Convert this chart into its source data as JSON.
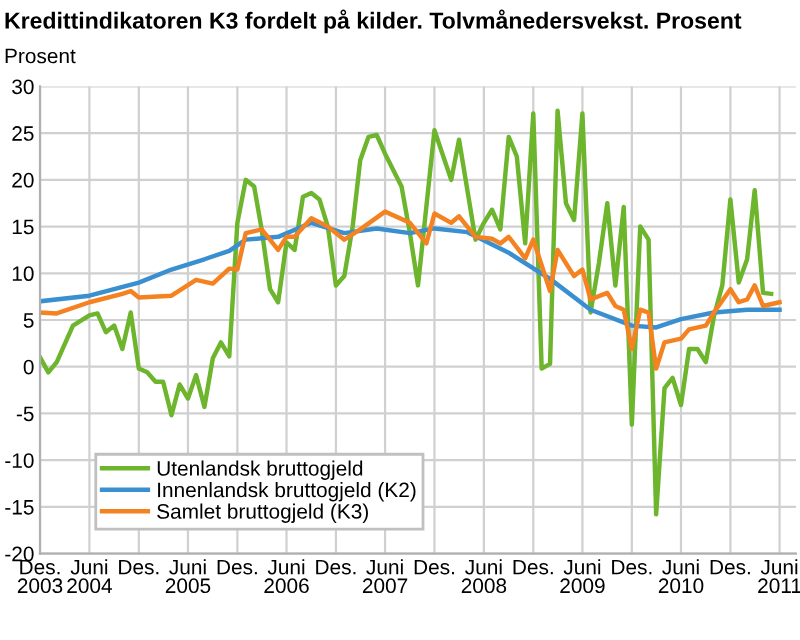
{
  "chart_data": {
    "type": "line",
    "title": "Kredittindikatoren K3 fordelt på kilder. Tolvmånedersvekst. Prosent",
    "ylabel": "Prosent",
    "xlim": [
      "2003-12",
      "2011-08"
    ],
    "ylim": [
      -20,
      30
    ],
    "yticks": [
      -20,
      -15,
      -10,
      -5,
      0,
      5,
      10,
      15,
      20,
      25,
      30
    ],
    "xticks": [
      {
        "value": "2003-12",
        "label": "Des.\n2003"
      },
      {
        "value": "2004-06",
        "label": "Juni\n2004"
      },
      {
        "value": "2004-12",
        "label": "Des."
      },
      {
        "value": "2005-06",
        "label": "Juni\n2005"
      },
      {
        "value": "2005-12",
        "label": "Des."
      },
      {
        "value": "2006-06",
        "label": "Juni\n2006"
      },
      {
        "value": "2006-12",
        "label": "Des."
      },
      {
        "value": "2007-06",
        "label": "Juni\n2007"
      },
      {
        "value": "2007-12",
        "label": "Des."
      },
      {
        "value": "2008-06",
        "label": "Juni\n2008"
      },
      {
        "value": "2008-12",
        "label": "Des."
      },
      {
        "value": "2009-06",
        "label": "Juni\n2009"
      },
      {
        "value": "2009-12",
        "label": "Des."
      },
      {
        "value": "2010-06",
        "label": "Juni\n2010"
      },
      {
        "value": "2010-12",
        "label": "Des."
      },
      {
        "value": "2011-06",
        "label": "Juni\n2011"
      }
    ],
    "grid": true,
    "legend": "bottom left",
    "marker": "none",
    "line_style": "solid",
    "series": [
      {
        "name": "Utenlandsk bruttogjeld",
        "color": "#6cb52d",
        "x": [
          "2003-12",
          "2004-01",
          "2004-02",
          "2004-04",
          "2004-06",
          "2004-07",
          "2004-08",
          "2004-09",
          "2004-10",
          "2004-11",
          "2004-12",
          "2005-01",
          "2005-02",
          "2005-03",
          "2005-04",
          "2005-05",
          "2005-06",
          "2005-07",
          "2005-08",
          "2005-09",
          "2005-10",
          "2005-11",
          "2005-12",
          "2006-01",
          "2006-02",
          "2006-03",
          "2006-04",
          "2006-05",
          "2006-06",
          "2006-07",
          "2006-08",
          "2006-09",
          "2006-10",
          "2006-11",
          "2006-12",
          "2007-01",
          "2007-02",
          "2007-03",
          "2007-04",
          "2007-05",
          "2007-06",
          "2007-08",
          "2007-09",
          "2007-10",
          "2007-12",
          "2008-02",
          "2008-03",
          "2008-05",
          "2008-06",
          "2008-07",
          "2008-08",
          "2008-09",
          "2008-10",
          "2008-11",
          "2008-12",
          "2009-01",
          "2009-02",
          "2009-03",
          "2009-04",
          "2009-05",
          "2009-06",
          "2009-07",
          "2009-08",
          "2009-09",
          "2009-10",
          "2009-11",
          "2009-12",
          "2010-01",
          "2010-02",
          "2010-03",
          "2010-04",
          "2010-05",
          "2010-06",
          "2010-07",
          "2010-08",
          "2010-09",
          "2010-10",
          "2010-11",
          "2010-12",
          "2011-01",
          "2011-02",
          "2011-03",
          "2011-04",
          "2011-05"
        ],
        "values": [
          1,
          -0.6,
          0.5,
          4.4,
          5.5,
          5.7,
          3.7,
          4.4,
          1.9,
          5.8,
          -0.2,
          -0.6,
          -1.6,
          -1.6,
          -5.2,
          -1.9,
          -3.4,
          -0.9,
          -4.3,
          0.9,
          2.6,
          1.1,
          15.4,
          20,
          19.3,
          14.7,
          8.3,
          6.9,
          13.3,
          12.5,
          18.2,
          18.6,
          17.9,
          15,
          8.7,
          9.7,
          15,
          22.1,
          24.6,
          24.8,
          22.8,
          19.3,
          14.3,
          8.7,
          25.3,
          20,
          24.3,
          13.6,
          15.4,
          16.8,
          14.7,
          24.6,
          22.5,
          13.2,
          27.1,
          -0.2,
          0.3,
          27.4,
          17.5,
          15.7,
          27.1,
          5.8,
          11.1,
          17.5,
          8.7,
          17.1,
          -6.2,
          15,
          13.6,
          -15.8,
          -2.3,
          -1.2,
          -4.1,
          1.9,
          1.9,
          0.5,
          5.4,
          8.7,
          17.9,
          9,
          11.5,
          18.9,
          7.9,
          7.8
        ]
      },
      {
        "name": "Innenlandsk bruttogjeld (K2)",
        "color": "#3a8fd0",
        "x": [
          "2003-12",
          "2004-06",
          "2004-12",
          "2005-04",
          "2005-08",
          "2005-11",
          "2006-01",
          "2006-05",
          "2006-09",
          "2007-01",
          "2007-05",
          "2007-09",
          "2007-12",
          "2008-04",
          "2008-09",
          "2009-02",
          "2009-07",
          "2009-12",
          "2010-03",
          "2010-06",
          "2010-10",
          "2011-02",
          "2011-06"
        ],
        "values": [
          7.0,
          7.6,
          9.0,
          10.4,
          11.5,
          12.4,
          13.6,
          13.9,
          15.4,
          14.3,
          14.8,
          14.3,
          14.8,
          14.4,
          12.2,
          9.4,
          6.1,
          4.4,
          4.2,
          5.1,
          5.8,
          6.1,
          6.1
        ]
      },
      {
        "name": "Samlet bruttogjeld (K3)",
        "color": "#f58220",
        "x": [
          "2003-12",
          "2004-02",
          "2004-06",
          "2004-10",
          "2004-11",
          "2004-12",
          "2005-04",
          "2005-07",
          "2005-09",
          "2005-11",
          "2005-12",
          "2006-01",
          "2006-03",
          "2006-05",
          "2006-06",
          "2006-07",
          "2006-09",
          "2006-11",
          "2007-01",
          "2007-03",
          "2007-06",
          "2007-09",
          "2007-11",
          "2007-12",
          "2008-02",
          "2008-03",
          "2008-05",
          "2008-07",
          "2008-08",
          "2008-09",
          "2008-11",
          "2008-12",
          "2009-02",
          "2009-03",
          "2009-05",
          "2009-06",
          "2009-07",
          "2009-09",
          "2009-10",
          "2009-11",
          "2009-12",
          "2010-01",
          "2010-02",
          "2010-03",
          "2010-04",
          "2010-06",
          "2010-07",
          "2010-09",
          "2010-10",
          "2010-12",
          "2011-01",
          "2011-02",
          "2011-03",
          "2011-04",
          "2011-06"
        ],
        "values": [
          5.8,
          5.7,
          6.9,
          7.8,
          8.1,
          7.4,
          7.6,
          9.3,
          8.9,
          10.5,
          10.4,
          14.3,
          14.7,
          12.5,
          13.9,
          13.9,
          15.9,
          15,
          13.6,
          14.7,
          16.6,
          15.4,
          13.2,
          16.4,
          15.4,
          16.1,
          13.9,
          13.7,
          13.2,
          13.9,
          11.6,
          13.6,
          8.1,
          12.5,
          9.7,
          10.4,
          7.2,
          7.9,
          6.5,
          6.1,
          1.9,
          6.1,
          5.8,
          -0.2,
          2.6,
          3.0,
          4.0,
          4.4,
          5.8,
          8.3,
          6.9,
          7.2,
          8.7,
          6.5,
          6.9
        ]
      }
    ]
  }
}
